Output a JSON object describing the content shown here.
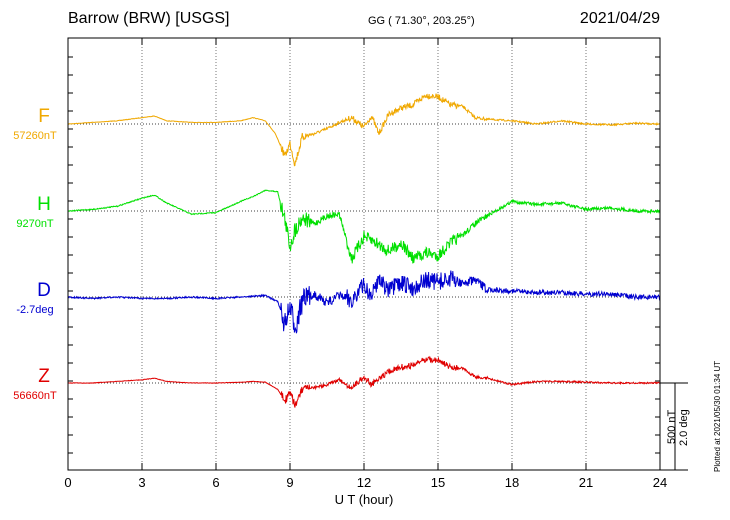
{
  "header": {
    "station": "Barrow (BRW)  [USGS]",
    "coords": "GG ( 71.30°, 203.25°)",
    "date": "2021/04/29"
  },
  "side_note": "Plotted at 2021/05/30 01:34 UT",
  "scale": {
    "field": "500 nT",
    "angle": "2.0 deg"
  },
  "channels": [
    {
      "name": "F",
      "baseline": "57260nT",
      "color": "#f0a800"
    },
    {
      "name": "H",
      "baseline": "9270nT",
      "color": "#00e000"
    },
    {
      "name": "D",
      "baseline": "-2.7deg",
      "color": "#0000d0"
    },
    {
      "name": "Z",
      "baseline": "56660nT",
      "color": "#e00000"
    }
  ],
  "chart_data": {
    "type": "line",
    "xlabel": "U T (hour)",
    "xlim": [
      0,
      24
    ],
    "xticks": [
      "0",
      "3",
      "6",
      "9",
      "12",
      "15",
      "18",
      "21",
      "24"
    ],
    "grid": true,
    "units": "scaled to 500 nT / 2.0 deg reference bar",
    "series": [
      {
        "name": "F",
        "x": [
          0,
          1,
          2,
          3,
          3.5,
          4,
          5,
          6,
          7,
          7.5,
          8,
          8.4,
          8.8,
          9,
          9.2,
          9.5,
          10,
          10.5,
          11,
          11.5,
          12,
          12.3,
          12.6,
          13,
          13.5,
          14,
          14.5,
          15,
          15.5,
          16,
          16.5,
          17,
          18,
          19,
          20,
          21,
          22,
          23,
          24
        ],
        "values": [
          0,
          10,
          20,
          40,
          50,
          20,
          10,
          10,
          20,
          40,
          20,
          -60,
          -200,
          -120,
          -250,
          -80,
          -60,
          -30,
          10,
          40,
          -20,
          50,
          -60,
          60,
          100,
          120,
          180,
          170,
          120,
          110,
          40,
          30,
          20,
          0,
          20,
          0,
          -5,
          5,
          0
        ]
      },
      {
        "name": "H",
        "x": [
          0,
          1,
          2,
          3,
          3.5,
          4,
          5,
          6,
          7,
          7.5,
          8,
          8.5,
          8.8,
          9,
          9.2,
          9.5,
          10,
          10.5,
          11,
          11.5,
          12,
          12.5,
          13,
          13.5,
          14,
          14.5,
          15,
          15.5,
          16,
          16.5,
          17,
          18,
          19,
          20,
          21,
          22,
          23,
          24
        ],
        "values": [
          0,
          10,
          30,
          80,
          100,
          50,
          -20,
          -10,
          60,
          90,
          130,
          120,
          -60,
          -220,
          -120,
          -40,
          -80,
          -30,
          -20,
          -300,
          -160,
          -200,
          -250,
          -200,
          -300,
          -260,
          -280,
          -200,
          -150,
          -80,
          -30,
          60,
          40,
          50,
          10,
          20,
          0,
          0
        ]
      },
      {
        "name": "D",
        "x": [
          0,
          1,
          2,
          3,
          4,
          5,
          6,
          7,
          8,
          8.5,
          8.8,
          9,
          9.2,
          9.5,
          10,
          10.5,
          11,
          11.5,
          12,
          12.3,
          12.6,
          13,
          13.5,
          14,
          14.5,
          15,
          15.5,
          16,
          16.5,
          17,
          18,
          19,
          20,
          21,
          22,
          23,
          24
        ],
        "values": [
          0,
          -0.1,
          0,
          -0.1,
          -0.1,
          0,
          -0.1,
          0,
          0.1,
          -0.3,
          -1.8,
          -0.8,
          -2.0,
          -0.3,
          0.2,
          -0.4,
          0.1,
          -0.2,
          0.8,
          0,
          1.3,
          0.4,
          0.9,
          0.6,
          1.1,
          1.0,
          1.2,
          0.9,
          1.1,
          0.5,
          0.4,
          0.3,
          0.3,
          0.2,
          0.2,
          0.0,
          0.0
        ]
      },
      {
        "name": "Z",
        "x": [
          0,
          1,
          2,
          3,
          3.5,
          4,
          5,
          6,
          7,
          7.5,
          8,
          8.5,
          8.8,
          9,
          9.2,
          9.5,
          10,
          10.5,
          11,
          11.5,
          12,
          12.3,
          12.6,
          13,
          13.5,
          14,
          14.5,
          15,
          15.5,
          16,
          16.5,
          17,
          18,
          19,
          20,
          21,
          22,
          23,
          24
        ],
        "values": [
          0,
          0,
          10,
          20,
          30,
          10,
          0,
          0,
          5,
          10,
          5,
          -40,
          -110,
          -60,
          -140,
          -40,
          -30,
          -10,
          20,
          -30,
          40,
          -10,
          30,
          70,
          100,
          110,
          150,
          140,
          100,
          90,
          40,
          30,
          -10,
          10,
          10,
          5,
          0,
          0,
          0
        ]
      }
    ]
  }
}
